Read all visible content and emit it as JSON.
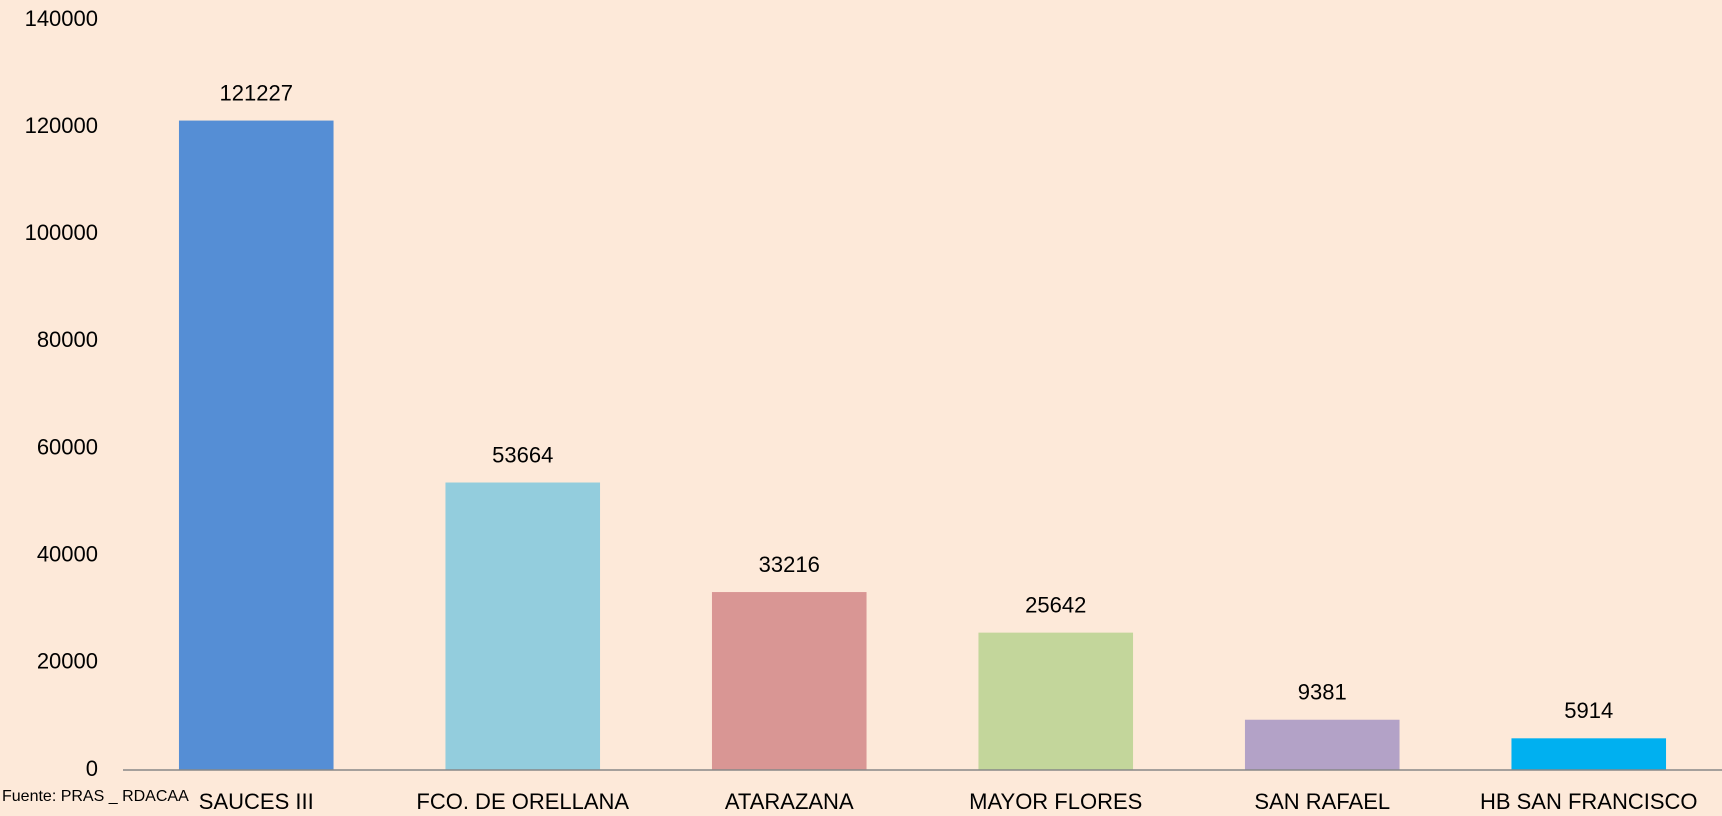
{
  "chart_data": {
    "type": "bar",
    "categories": [
      "SAUCES III",
      "FCO. DE ORELLANA",
      "ATARAZANA",
      "MAYOR FLORES",
      "SAN RAFAEL",
      "HB SAN FRANCISCO"
    ],
    "values": [
      121227,
      53664,
      33216,
      25642,
      9381,
      5914
    ],
    "colors": [
      "#558ed5",
      "#93cddd",
      "#d99694",
      "#c3d69b",
      "#b3a2c7",
      "#00b0f0"
    ],
    "ylim": [
      0,
      140000
    ],
    "yticks": [
      0,
      20000,
      40000,
      60000,
      80000,
      100000,
      120000,
      140000
    ],
    "grid": false,
    "source": "Fuente: PRAS _ RDACAA"
  }
}
